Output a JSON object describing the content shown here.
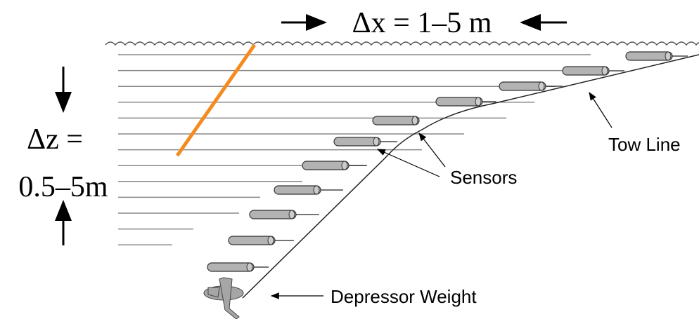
{
  "labels": {
    "dx": "Δx = 1–5 m",
    "dz_top": "Δz =",
    "dz_bottom": "0.5–5m",
    "tow_line": "Tow Line",
    "sensors": "Sensors",
    "depressor": "Depressor Weight"
  }
}
